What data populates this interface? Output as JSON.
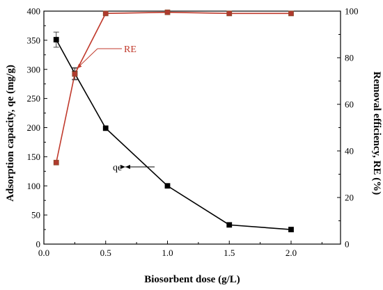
{
  "chart_data": {
    "type": "line",
    "x": [
      0.1,
      0.25,
      0.5,
      1.0,
      1.5,
      2.0
    ],
    "xlabel": "Biosorbent dose (g/L)",
    "xlim": [
      0,
      2.4
    ],
    "xticks": [
      "0.0",
      "0.5",
      "1.0",
      "1.5",
      "2.0"
    ],
    "ylabel_left": "Adsorption capacity, qe (mg/g)",
    "ylim_left": [
      0,
      400
    ],
    "yticks_left": [
      "0",
      "50",
      "100",
      "150",
      "200",
      "250",
      "300",
      "350",
      "400"
    ],
    "ylabel_right": "Removal efficiency, RE (%)",
    "ylim_right": [
      0,
      100
    ],
    "yticks_right": [
      "0",
      "20",
      "40",
      "60",
      "80",
      "100"
    ],
    "series": [
      {
        "name": "qe",
        "axis": "left",
        "values": [
          351,
          293,
          199,
          100,
          33,
          25
        ],
        "errors": [
          13,
          10,
          0,
          0,
          0,
          0
        ],
        "color": "#000000",
        "marker": "square"
      },
      {
        "name": "RE",
        "axis": "right",
        "values": [
          35,
          73,
          99,
          99.5,
          99,
          99
        ],
        "errors": [
          0,
          2.5,
          0,
          0,
          0,
          0
        ],
        "color": "#c0392b",
        "marker": "square"
      }
    ],
    "annotations": [
      {
        "text": "RE",
        "series": "RE",
        "color": "#c0392b"
      },
      {
        "text": "qe",
        "series": "qe",
        "color": "#000000"
      }
    ],
    "grid": false,
    "legend": "none"
  }
}
